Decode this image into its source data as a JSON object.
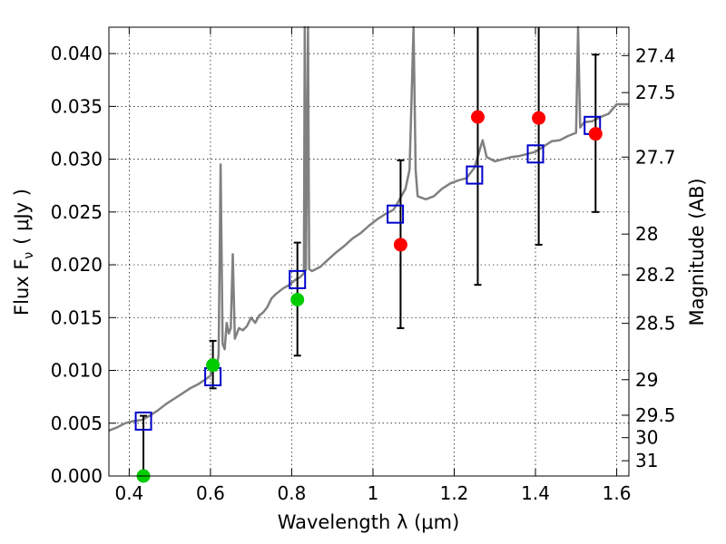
{
  "chart_data": {
    "type": "scatter",
    "xlabel": "Wavelength  λ (μm)",
    "ylabel_left": "Flux  F",
    "ylabel_left_sub": "ν",
    "ylabel_left_unit": "( μJy )",
    "ylabel_right": "Magnitude (AB)",
    "xlim": [
      0.35,
      1.63
    ],
    "ylim": [
      0.0,
      0.0425
    ],
    "grid": true,
    "x_ticks": [
      {
        "value": 0.4,
        "label": "0.4"
      },
      {
        "value": 0.6,
        "label": "0.6"
      },
      {
        "value": 0.8,
        "label": "0.8"
      },
      {
        "value": 1.0,
        "label": "1"
      },
      {
        "value": 1.2,
        "label": "1.2"
      },
      {
        "value": 1.4,
        "label": "1.4"
      },
      {
        "value": 1.6,
        "label": "1.6"
      }
    ],
    "y_ticks": [
      {
        "value": 0.0,
        "label": "0.000"
      },
      {
        "value": 0.005,
        "label": "0.005"
      },
      {
        "value": 0.01,
        "label": "0.010"
      },
      {
        "value": 0.015,
        "label": "0.015"
      },
      {
        "value": 0.02,
        "label": "0.020"
      },
      {
        "value": 0.025,
        "label": "0.025"
      },
      {
        "value": 0.03,
        "label": "0.030"
      },
      {
        "value": 0.035,
        "label": "0.035"
      },
      {
        "value": 0.04,
        "label": "0.040"
      }
    ],
    "mag_ticks": [
      {
        "value": 27.4,
        "label": "27.4"
      },
      {
        "value": 27.5,
        "label": "27.5"
      },
      {
        "value": 27.7,
        "label": "27.7"
      },
      {
        "value": 28.0,
        "label": "28"
      },
      {
        "value": 28.2,
        "label": "28.2"
      },
      {
        "value": 28.5,
        "label": "28.5"
      },
      {
        "value": 29.0,
        "label": "29"
      },
      {
        "value": 29.5,
        "label": "29.5"
      },
      {
        "value": 30.0,
        "label": "30"
      },
      {
        "value": 31.0,
        "label": "31"
      }
    ],
    "model_spectrum": {
      "color": "#808080",
      "points": [
        [
          0.35,
          0.0043
        ],
        [
          0.37,
          0.0046
        ],
        [
          0.39,
          0.005
        ],
        [
          0.41,
          0.0052
        ],
        [
          0.43,
          0.0053
        ],
        [
          0.45,
          0.0057
        ],
        [
          0.47,
          0.0062
        ],
        [
          0.49,
          0.0068
        ],
        [
          0.51,
          0.0073
        ],
        [
          0.53,
          0.0078
        ],
        [
          0.55,
          0.0083
        ],
        [
          0.57,
          0.0087
        ],
        [
          0.59,
          0.0092
        ],
        [
          0.6,
          0.0095
        ],
        [
          0.605,
          0.011
        ],
        [
          0.61,
          0.0105
        ],
        [
          0.615,
          0.01
        ],
        [
          0.62,
          0.0115
        ],
        [
          0.625,
          0.0295
        ],
        [
          0.63,
          0.0125
        ],
        [
          0.635,
          0.012
        ],
        [
          0.64,
          0.0145
        ],
        [
          0.645,
          0.0135
        ],
        [
          0.65,
          0.014
        ],
        [
          0.655,
          0.021
        ],
        [
          0.66,
          0.013
        ],
        [
          0.67,
          0.014
        ],
        [
          0.68,
          0.0138
        ],
        [
          0.69,
          0.0142
        ],
        [
          0.7,
          0.015
        ],
        [
          0.71,
          0.0145
        ],
        [
          0.72,
          0.0152
        ],
        [
          0.73,
          0.0155
        ],
        [
          0.74,
          0.016
        ],
        [
          0.75,
          0.0168
        ],
        [
          0.76,
          0.0172
        ],
        [
          0.77,
          0.0175
        ],
        [
          0.78,
          0.0178
        ],
        [
          0.79,
          0.018
        ],
        [
          0.8,
          0.0183
        ],
        [
          0.81,
          0.0186
        ],
        [
          0.82,
          0.0188
        ],
        [
          0.83,
          0.0192
        ],
        [
          0.832,
          0.0425
        ],
        [
          0.835,
          0.0195
        ],
        [
          0.84,
          0.0425
        ],
        [
          0.843,
          0.0196
        ],
        [
          0.85,
          0.0194
        ],
        [
          0.87,
          0.0198
        ],
        [
          0.89,
          0.0205
        ],
        [
          0.91,
          0.0212
        ],
        [
          0.93,
          0.0218
        ],
        [
          0.95,
          0.0225
        ],
        [
          0.97,
          0.023
        ],
        [
          0.99,
          0.0237
        ],
        [
          1.01,
          0.0243
        ],
        [
          1.03,
          0.0248
        ],
        [
          1.05,
          0.0252
        ],
        [
          1.06,
          0.0258
        ],
        [
          1.07,
          0.0265
        ],
        [
          1.08,
          0.0272
        ],
        [
          1.09,
          0.029
        ],
        [
          1.1,
          0.0425
        ],
        [
          1.105,
          0.029
        ],
        [
          1.11,
          0.0265
        ],
        [
          1.13,
          0.0262
        ],
        [
          1.15,
          0.0265
        ],
        [
          1.17,
          0.0272
        ],
        [
          1.19,
          0.0277
        ],
        [
          1.21,
          0.028
        ],
        [
          1.23,
          0.0282
        ],
        [
          1.25,
          0.0292
        ],
        [
          1.27,
          0.0318
        ],
        [
          1.28,
          0.0302
        ],
        [
          1.3,
          0.0298
        ],
        [
          1.32,
          0.03
        ],
        [
          1.34,
          0.0302
        ],
        [
          1.36,
          0.0303
        ],
        [
          1.38,
          0.0305
        ],
        [
          1.4,
          0.0307
        ],
        [
          1.42,
          0.0312
        ],
        [
          1.44,
          0.0317
        ],
        [
          1.46,
          0.0318
        ],
        [
          1.48,
          0.0322
        ],
        [
          1.5,
          0.0325
        ],
        [
          1.505,
          0.0425
        ],
        [
          1.51,
          0.033
        ],
        [
          1.52,
          0.0335
        ],
        [
          1.54,
          0.0336
        ],
        [
          1.56,
          0.034
        ],
        [
          1.58,
          0.0343
        ],
        [
          1.6,
          0.0352
        ],
        [
          1.63,
          0.0352
        ]
      ]
    },
    "model_photometry": {
      "color": "#0000cc",
      "marker": "open-square",
      "points": [
        [
          0.435,
          0.0052
        ],
        [
          0.606,
          0.0094
        ],
        [
          0.814,
          0.0186
        ],
        [
          1.055,
          0.0248
        ],
        [
          1.25,
          0.0285
        ],
        [
          1.4,
          0.0305
        ],
        [
          1.54,
          0.0332
        ]
      ]
    },
    "observed_detections": {
      "color": "#00cc00",
      "marker": "filled-circle",
      "points": [
        [
          0.435,
          0.0
        ],
        [
          0.606,
          0.0105
        ],
        [
          0.814,
          0.0167
        ]
      ]
    },
    "observed_upper": {
      "color": "#ff0000",
      "marker": "filled-circle",
      "points": [
        [
          1.068,
          0.0219
        ],
        [
          1.258,
          0.034
        ],
        [
          1.408,
          0.0339
        ],
        [
          1.548,
          0.0324
        ]
      ]
    },
    "error_bars": [
      {
        "x": 0.435,
        "low": 0.0,
        "high": 0.0057
      },
      {
        "x": 0.606,
        "low": 0.0083,
        "high": 0.0128
      },
      {
        "x": 0.814,
        "low": 0.0114,
        "high": 0.0221
      },
      {
        "x": 1.068,
        "low": 0.014,
        "high": 0.0299
      },
      {
        "x": 1.258,
        "low": 0.0181,
        "high": 0.0425
      },
      {
        "x": 1.408,
        "low": 0.0219,
        "high": 0.0425
      },
      {
        "x": 1.548,
        "low": 0.025,
        "high": 0.0399
      }
    ]
  }
}
